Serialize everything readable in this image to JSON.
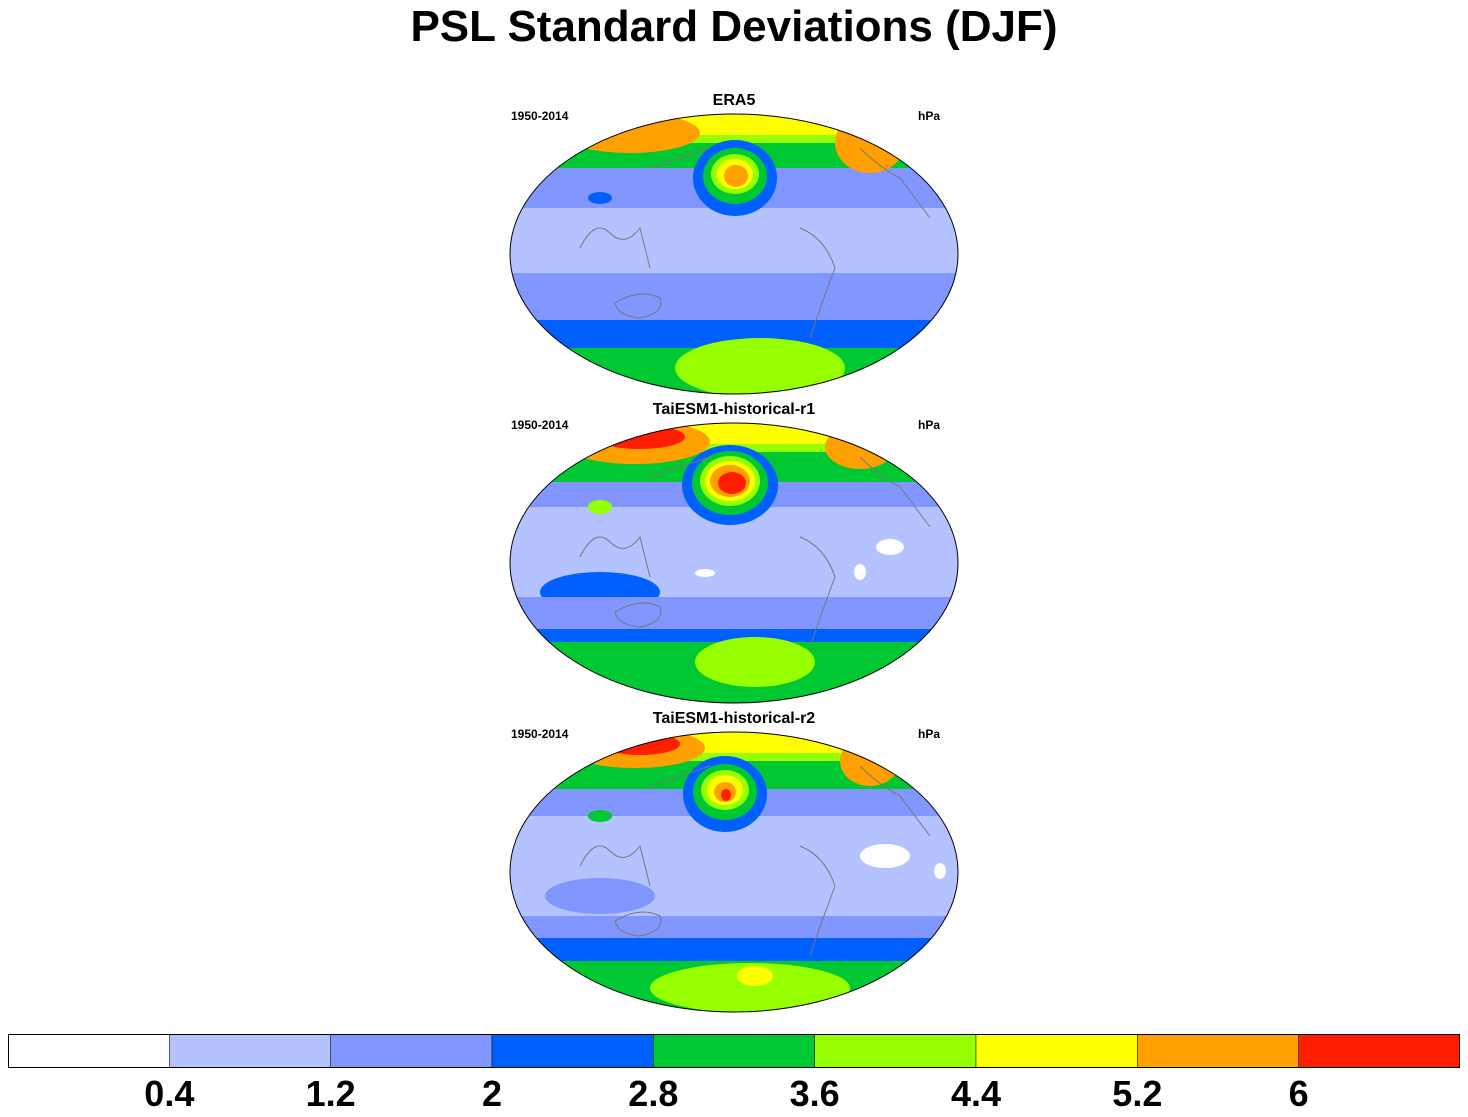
{
  "title": "PSL Standard Deviations (DJF)",
  "panels": [
    {
      "title": "ERA5",
      "left": "1950-2014",
      "right": "hPa"
    },
    {
      "title": "TaiESM1-historical-r1",
      "left": "1950-2014",
      "right": "hPa"
    },
    {
      "title": "TaiESM1-historical-r2",
      "left": "1950-2014",
      "right": "hPa"
    }
  ],
  "colorbar": {
    "labels": [
      "0.4",
      "1.2",
      "2",
      "2.8",
      "3.6",
      "4.4",
      "5.2",
      "6"
    ],
    "colors": [
      "#ffffff",
      "#b4c3ff",
      "#8296ff",
      "#0060ff",
      "#00c832",
      "#96ff00",
      "#ffff00",
      "#ffa000",
      "#ff1e00"
    ]
  }
}
